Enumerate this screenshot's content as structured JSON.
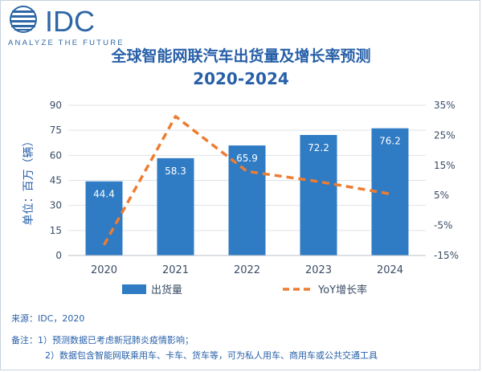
{
  "logo": {
    "text": "IDC",
    "tagline": "ANALYZE THE FUTURE"
  },
  "colors": {
    "bar": "#2f7bc4",
    "line": "#ee7d31",
    "text": "#2860a8",
    "axis": "#3a4c66",
    "grid": "#dfe3e8"
  },
  "chart_data": {
    "type": "bar",
    "title": "全球智能网联汽车出货量及增长率预测",
    "subtitle": "2020-2024",
    "categories": [
      "2020",
      "2021",
      "2022",
      "2023",
      "2024"
    ],
    "ylabel": "单位：百万（辆）",
    "ylim": [
      0,
      90
    ],
    "yticks": [
      0,
      15,
      30,
      45,
      60,
      75,
      90
    ],
    "y2lim": [
      -15,
      35
    ],
    "y2ticks": [
      "-15%",
      "-5%",
      "5%",
      "15%",
      "25%",
      "35%"
    ],
    "y2tick_values": [
      -15,
      -5,
      5,
      15,
      25,
      35
    ],
    "grid": true,
    "legend_position": "bottom",
    "series": [
      {
        "name": "出货量",
        "kind": "bar",
        "axis": "left",
        "values": [
          44.4,
          58.3,
          65.9,
          72.2,
          76.2
        ],
        "labels": [
          "44.4",
          "58.3",
          "65.9",
          "72.2",
          "76.2"
        ]
      },
      {
        "name": "YoY增长率",
        "kind": "line",
        "style": "dashed",
        "axis": "right",
        "values": [
          -11.5,
          31.3,
          13.0,
          9.6,
          5.5
        ]
      }
    ]
  },
  "footnotes": {
    "source": "来源：IDC，2020",
    "note_1": "备注：1）预测数据已考虑新冠肺炎疫情影响；",
    "note_2": "2）数据包含智能网联乘用车、卡车、货车等，可为私人用车、商用车或公共交通工具"
  }
}
